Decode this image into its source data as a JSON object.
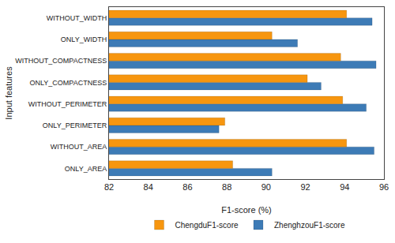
{
  "chart_data": {
    "type": "bar",
    "orientation": "horizontal",
    "x_label": "F1-score (%)",
    "y_label": "Input features",
    "categories": [
      "ONLY_AREA",
      "WITHOUT_AREA",
      "ONLY_PERIMETER",
      "WITHOUT_PERIMETER",
      "ONLY_COMPACTNESS",
      "WITHOUT_COMPACTNESS",
      "ONLY_WIDTH",
      "WITHOUT_WIDTH"
    ],
    "series": [
      {
        "name": "ChengduF1-score",
        "color": "#f7960f",
        "values": [
          88.3,
          94.1,
          87.9,
          93.9,
          92.1,
          93.8,
          90.3,
          94.1
        ]
      },
      {
        "name": "ZhenghzouF1-score",
        "color": "#3d7bb6",
        "values": [
          90.3,
          95.5,
          87.6,
          95.1,
          92.8,
          95.6,
          91.6,
          95.4
        ]
      }
    ],
    "xlim": [
      82,
      96
    ],
    "xticks": [
      82,
      84,
      86,
      88,
      90,
      92,
      94,
      96
    ],
    "grid": false,
    "legend": "bottom"
  }
}
